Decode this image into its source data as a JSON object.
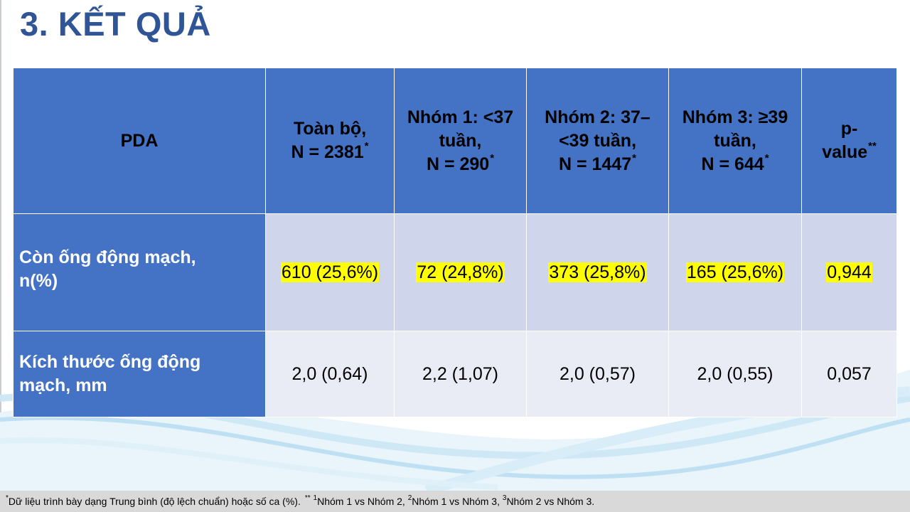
{
  "slide": {
    "title": "3. KẾT QUẢ"
  },
  "table": {
    "header": {
      "col0": "PDA",
      "col1": {
        "line1": "Toàn bộ,",
        "line2": "N = 2381",
        "mark": "*"
      },
      "col2": {
        "line1": "Nhóm 1: <37",
        "line2": "tuần,",
        "line3": "N = 290",
        "mark": "*"
      },
      "col3": {
        "line1": "Nhóm 2: 37–",
        "line2": "<39 tuần,",
        "line3": "N = 1447",
        "mark": "*"
      },
      "col4": {
        "line1": "Nhóm 3: ≥39",
        "line2": "tuần,",
        "line3": "N = 644",
        "mark": "*"
      },
      "col5": {
        "line1": "p-",
        "line2": "value",
        "mark": "**"
      }
    },
    "rows": [
      {
        "label_line1": "Còn ống động mạch,",
        "label_line2": "n(%)",
        "values": [
          "610 (25,6%)",
          "72 (24,8%)",
          "373 (25,8%)",
          "165 (25,6%)",
          "0,944"
        ],
        "highlight_color": "#ffff00"
      },
      {
        "label_line1": "Kích thước ống động",
        "label_line2": "mạch, mm",
        "values": [
          "2,0 (0,64)",
          "2,2 (1,07)",
          "2,0 (0,57)",
          "2,0 (0,55)",
          "0,057"
        ]
      }
    ]
  },
  "footer": {
    "mark1": "*",
    "text1": "Dữ liệu trình bày dạng Trung bình (độ lệch chuẩn) hoặc số ca (%).",
    "mark2": "**",
    "sup1": "1",
    "text2": "Nhóm 1 vs Nhóm 2,",
    "sup2": "2",
    "text3": "Nhóm 1 vs Nhóm 3,",
    "sup3": "3",
    "text4": "Nhóm 2 vs Nhóm 3."
  },
  "colors": {
    "title": "#2f5597",
    "header_bg": "#4472c4",
    "row1_bg": "#cfd5ea",
    "row2_bg": "#e9ebf5",
    "highlight": "#ffff00",
    "footer_bg": "#d9d9d9"
  }
}
